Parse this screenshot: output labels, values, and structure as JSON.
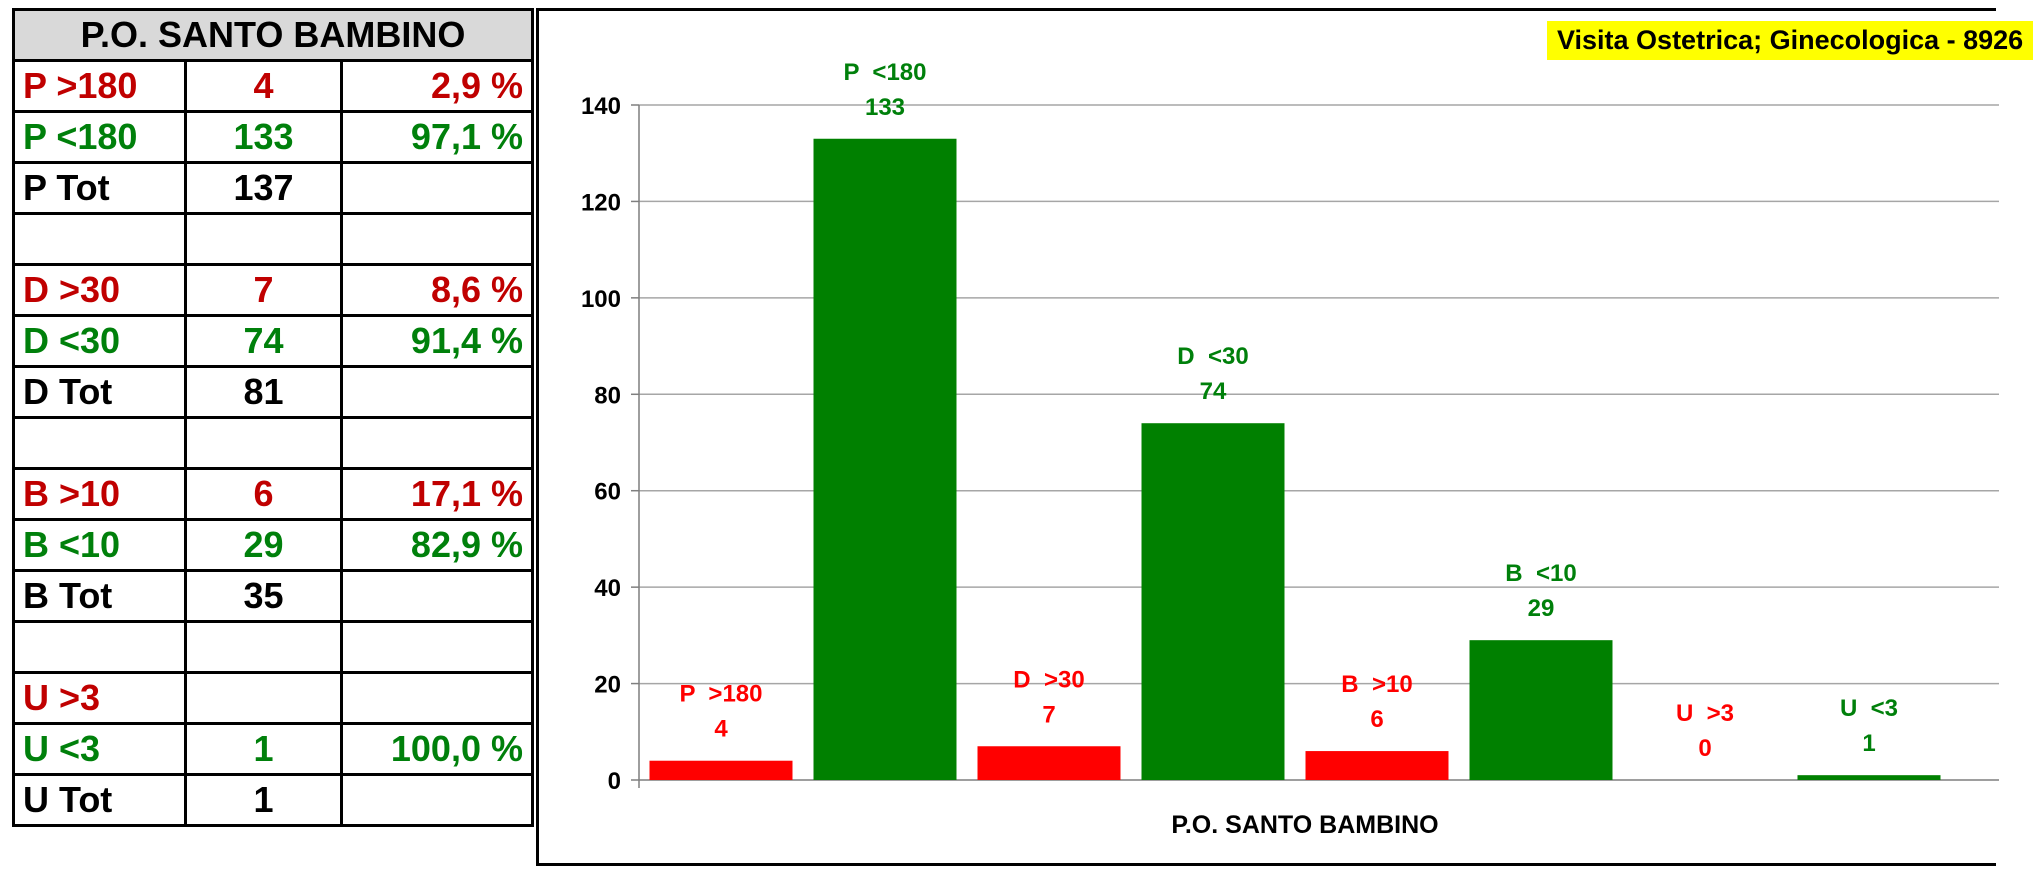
{
  "table": {
    "header": "P.O. SANTO BAMBINO",
    "rows": [
      {
        "label": "P  >180",
        "count": "4",
        "pct": "2,9 %",
        "color": "#c00000"
      },
      {
        "label": "P  <180",
        "count": "133",
        "pct": "97,1 %",
        "color": "#00800b"
      },
      {
        "label": "P  Tot",
        "count": "137",
        "pct": "",
        "color": "#000000"
      },
      {
        "label": "",
        "count": "",
        "pct": "",
        "color": "#000000"
      },
      {
        "label": "D  >30",
        "count": "7",
        "pct": "8,6 %",
        "color": "#c00000"
      },
      {
        "label": "D  <30",
        "count": "74",
        "pct": "91,4 %",
        "color": "#00800b"
      },
      {
        "label": "D  Tot",
        "count": "81",
        "pct": "",
        "color": "#000000"
      },
      {
        "label": "",
        "count": "",
        "pct": "",
        "color": "#000000"
      },
      {
        "label": "B  >10",
        "count": "6",
        "pct": "17,1 %",
        "color": "#c00000"
      },
      {
        "label": "B  <10",
        "count": "29",
        "pct": "82,9 %",
        "color": "#00800b"
      },
      {
        "label": "B  Tot",
        "count": "35",
        "pct": "",
        "color": "#000000"
      },
      {
        "label": "",
        "count": "",
        "pct": "",
        "color": "#000000"
      },
      {
        "label": "U  >3",
        "count": "",
        "pct": "",
        "color": "#c00000"
      },
      {
        "label": "U  <3",
        "count": "1",
        "pct": "100,0 %",
        "color": "#00800b"
      },
      {
        "label": "U  Tot",
        "count": "1",
        "pct": "",
        "color": "#000000"
      }
    ]
  },
  "badge": "Visita Ostetrica; Ginecologica - 8926",
  "chart_data": {
    "type": "bar",
    "xlabel": "P.O. SANTO BAMBINO",
    "ylabel": "",
    "ylim": [
      0,
      140
    ],
    "yticks": [
      0,
      20,
      40,
      60,
      80,
      100,
      120,
      140
    ],
    "grid": true,
    "series": [
      {
        "name": "P  >180",
        "value": 4,
        "color": "#ff0000",
        "label_color": "#ff0000"
      },
      {
        "name": "P  <180",
        "value": 133,
        "color": "#008000",
        "label_color": "#00800b"
      },
      {
        "name": "D  >30",
        "value": 7,
        "color": "#ff0000",
        "label_color": "#ff0000"
      },
      {
        "name": "D  <30",
        "value": 74,
        "color": "#008000",
        "label_color": "#00800b"
      },
      {
        "name": "B  >10",
        "value": 6,
        "color": "#ff0000",
        "label_color": "#ff0000"
      },
      {
        "name": "B  <10",
        "value": 29,
        "color": "#008000",
        "label_color": "#00800b"
      },
      {
        "name": "U  >3",
        "value": 0,
        "color": "#ff0000",
        "label_color": "#ff0000"
      },
      {
        "name": "U  <3",
        "value": 1,
        "color": "#008000",
        "label_color": "#00800b"
      }
    ]
  }
}
